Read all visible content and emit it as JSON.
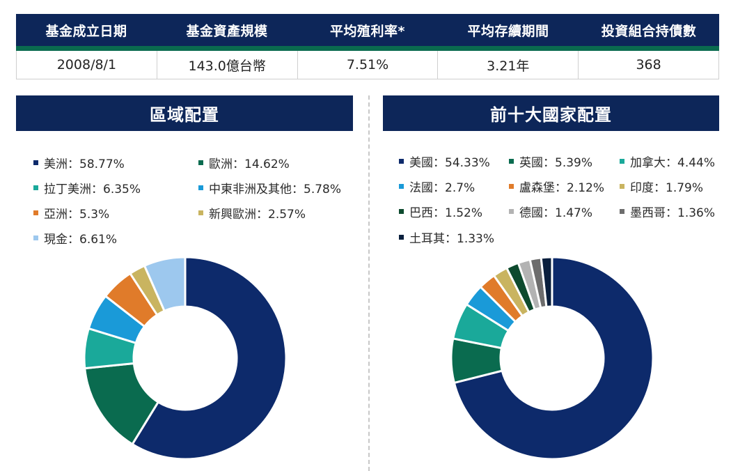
{
  "summary": {
    "headers": [
      "基金成立日期",
      "基金資產規模",
      "平均殖利率*",
      "平均存續期間",
      "投資組合持債數"
    ],
    "values": [
      "2008/8/1",
      "143.0億台幣",
      "7.51%",
      "3.21年",
      "368"
    ]
  },
  "chart_data": [
    {
      "type": "pie",
      "title": "區域配置",
      "donut": true,
      "labels": [
        "美洲",
        "歐洲",
        "拉丁美洲",
        "中東非洲及其他",
        "亞洲",
        "新興歐洲",
        "現金"
      ],
      "values": [
        58.77,
        14.62,
        6.35,
        5.78,
        5.3,
        2.57,
        6.61
      ],
      "legend_text": [
        "美洲：58.77%",
        "歐洲：14.62%",
        "拉丁美洲：6.35%",
        "中東非洲及其他：5.78%",
        "亞洲：5.3%",
        "新興歐洲：2.57%",
        "現金：6.61%"
      ],
      "colors": [
        "#0d2a6b",
        "#0a6b4f",
        "#1aa99a",
        "#1a9ad8",
        "#e07b2a",
        "#c9b460",
        "#9dc8ee"
      ],
      "legend_placement": "top"
    },
    {
      "type": "pie",
      "title": "前十大國家配置",
      "donut": true,
      "labels": [
        "美國",
        "英國",
        "加拿大",
        "法國",
        "盧森堡",
        "印度",
        "巴西",
        "德國",
        "墨西哥",
        "土耳其"
      ],
      "values": [
        54.33,
        5.39,
        4.44,
        2.7,
        2.12,
        1.79,
        1.52,
        1.47,
        1.36,
        1.33
      ],
      "legend_text": [
        "美國：54.33%",
        "英國：5.39%",
        "加拿大：4.44%",
        "法國：2.7%",
        "盧森堡：2.12%",
        "印度：1.79%",
        "巴西：1.52%",
        "德國：1.47%",
        "墨西哥：1.36%",
        "土耳其：1.33%"
      ],
      "colors": [
        "#0d2a6b",
        "#0a6b4f",
        "#1aa99a",
        "#1a9ad8",
        "#e07b2a",
        "#c9b460",
        "#0d4a2e",
        "#b3b3b3",
        "#6d6d6d",
        "#0a1f3d"
      ],
      "legend_placement": "top"
    }
  ]
}
